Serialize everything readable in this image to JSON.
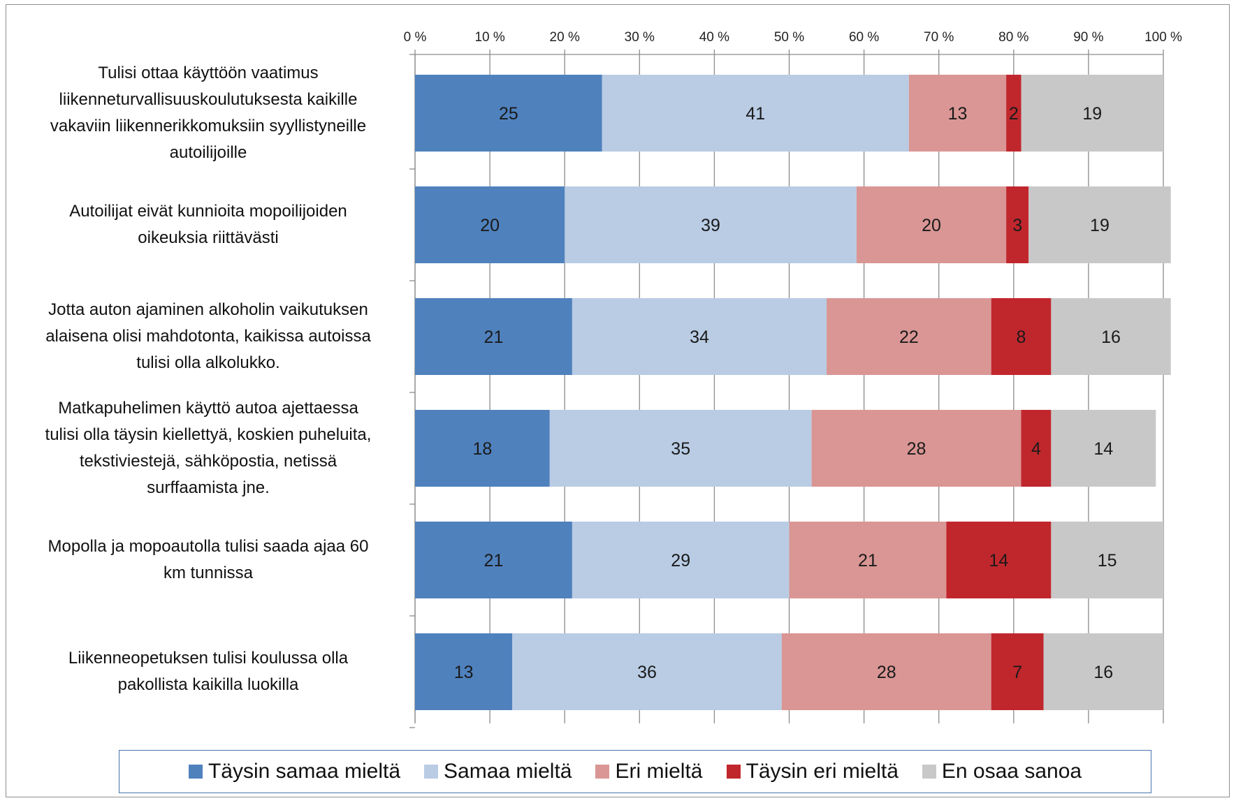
{
  "chart_data": {
    "type": "bar",
    "orientation": "horizontal-stacked-100",
    "categories": [
      "Tulisi ottaa käyttöön vaatimus liikenneturvallisuuskoulutuksesta kaikille vakaviin liikennerikkomuksiin syyllistyneille autoilijoille",
      "Autoilijat eivät kunnioita mopoilijoiden oikeuksia riittävästi",
      "Jotta auton ajaminen alkoholin vaikutuksen alaisena olisi mahdotonta, kaikissa autoissa tulisi olla alkolukko.",
      "Matkapuhelimen käyttö autoa ajettaessa tulisi olla täysin kiellettyä, koskien puheluita, tekstiviestejä, sähköpostia, netissä surffaamista jne.",
      "Mopolla ja mopoautolla tulisi saada ajaa 60 km tunnissa",
      "Liikenneopetuksen tulisi koulussa olla pakollista kaikilla luokilla"
    ],
    "category_lines": [
      [
        "Tulisi ottaa käyttöön vaatimus",
        "liikenneturvallisuuskoulutuksesta  kaikille",
        "vakaviin liikennerikkomuksiin syyllistyneille",
        "autoilijoille"
      ],
      [
        "Autoilijat eivät kunnioita mopoilijoiden",
        "oikeuksia riittävästi"
      ],
      [
        "Jotta auton ajaminen alkoholin vaikutuksen",
        "alaisena olisi mahdotonta, kaikissa autoissa",
        "tulisi olla alkolukko."
      ],
      [
        "Matkapuhelimen käyttö autoa ajettaessa",
        "tulisi olla täysin kiellettyä, koskien  puheluita,",
        "tekstiviestejä, sähköpostia, netissä",
        "surffaamista jne."
      ],
      [
        "Mopolla ja mopoautolla tulisi saada ajaa 60",
        "km tunnissa"
      ],
      [
        "Liikenneopetuksen tulisi koulussa olla",
        "pakollista kaikilla luokilla"
      ]
    ],
    "series": [
      {
        "name": "Täysin samaa mieltä",
        "color": "#4f81bd",
        "label_color": "#1a1a1a",
        "values": [
          25,
          20,
          21,
          18,
          21,
          13
        ]
      },
      {
        "name": "Samaa mieltä",
        "color": "#b9cce4",
        "label_color": "#1a1a1a",
        "values": [
          41,
          39,
          34,
          35,
          29,
          36
        ]
      },
      {
        "name": "Eri mieltä",
        "color": "#d99694",
        "label_color": "#1a1a1a",
        "values": [
          13,
          20,
          22,
          28,
          21,
          28
        ]
      },
      {
        "name": "Täysin eri mieltä",
        "color": "#c0272d",
        "label_color": "#1a1a1a",
        "values": [
          2,
          3,
          8,
          4,
          14,
          7
        ]
      },
      {
        "name": "En osaa sanoa",
        "color": "#c8c8c8",
        "label_color": "#1a1a1a",
        "values": [
          19,
          19,
          16,
          14,
          15,
          16
        ]
      }
    ],
    "xlim": [
      0,
      100
    ],
    "x_ticks": [
      0,
      10,
      20,
      30,
      40,
      50,
      60,
      70,
      80,
      90,
      100
    ],
    "x_tick_labels": [
      "0 %",
      "10 %",
      "20 %",
      "30 %",
      "40 %",
      "50 %",
      "60 %",
      "70 %",
      "80 %",
      "90 %",
      "100 %"
    ],
    "x_axis_position": "top",
    "grid": true,
    "legend_position": "bottom"
  }
}
